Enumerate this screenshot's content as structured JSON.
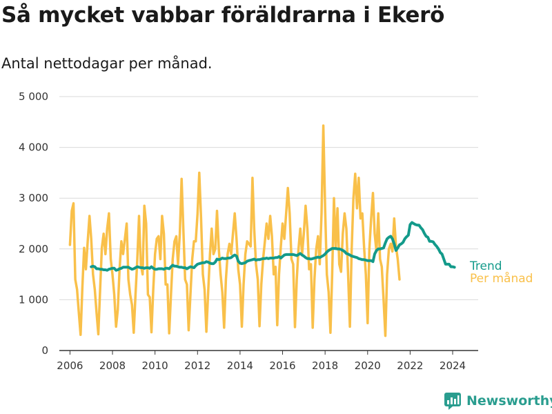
{
  "header": {
    "title": "Så mycket vabbar föräldrarna i Ekerö",
    "subtitle": "Antal nettodagar per månad."
  },
  "brand": {
    "name": "Newsworthy",
    "icon": "bar-chart-logo-icon",
    "color": "#2a9d8f"
  },
  "chart_data": {
    "type": "line",
    "xlim": [
      2005.5,
      2025.2
    ],
    "ylim": [
      0,
      5000
    ],
    "y_ticks": [
      {
        "value": 0,
        "label": "0"
      },
      {
        "value": 1000,
        "label": "1 000"
      },
      {
        "value": 2000,
        "label": "2 000"
      },
      {
        "value": 3000,
        "label": "3 000"
      },
      {
        "value": 4000,
        "label": "4 000"
      },
      {
        "value": 5000,
        "label": "5 000"
      }
    ],
    "x_ticks": [
      {
        "value": 2006,
        "label": "2006"
      },
      {
        "value": 2008,
        "label": "2008"
      },
      {
        "value": 2010,
        "label": "2010"
      },
      {
        "value": 2012,
        "label": "2012"
      },
      {
        "value": 2014,
        "label": "2014"
      },
      {
        "value": 2016,
        "label": "2016"
      },
      {
        "value": 2018,
        "label": "2018"
      },
      {
        "value": 2020,
        "label": "2020"
      },
      {
        "value": 2022,
        "label": "2022"
      },
      {
        "value": 2024,
        "label": "2024"
      }
    ],
    "grid": true,
    "series": [
      {
        "name": "Per månad",
        "color": "#f9c04a",
        "start": 2006.0,
        "step": 0.0833333,
        "values": [
          2080,
          2750,
          2900,
          1400,
          1200,
          750,
          310,
          1250,
          2020,
          1600,
          2150,
          2650,
          2200,
          1500,
          1200,
          750,
          320,
          1200,
          2020,
          2300,
          1900,
          2400,
          2700,
          1800,
          1500,
          1100,
          470,
          800,
          1600,
          2150,
          1900,
          2200,
          2500,
          1400,
          1100,
          900,
          350,
          1100,
          1800,
          2650,
          1700,
          1500,
          2850,
          2500,
          1100,
          1050,
          360,
          1200,
          1900,
          2200,
          2250,
          1800,
          2650,
          2300,
          1300,
          1300,
          340,
          1100,
          1800,
          2150,
          2250,
          1700,
          2300,
          3380,
          2400,
          1400,
          1300,
          400,
          1100,
          1800,
          2150,
          2150,
          2700,
          3500,
          2600,
          1500,
          1200,
          370,
          1150,
          1900,
          2400,
          1900,
          2000,
          2750,
          2000,
          1500,
          1150,
          450,
          1400,
          1900,
          2100,
          1900,
          2300,
          2700,
          2200,
          1600,
          1300,
          470,
          1300,
          1900,
          2150,
          2100,
          2050,
          3400,
          2400,
          1700,
          1400,
          480,
          1300,
          1800,
          2150,
          2500,
          2200,
          2650,
          2250,
          1500,
          1650,
          500,
          1500,
          2050,
          2500,
          2200,
          2700,
          3200,
          2700,
          1800,
          1700,
          460,
          1400,
          2000,
          2400,
          1900,
          2300,
          2850,
          2400,
          1600,
          1700,
          450,
          1400,
          2000,
          2250,
          1700,
          2700,
          4430,
          2800,
          1500,
          1150,
          350,
          1500,
          3000,
          2000,
          2800,
          1700,
          1550,
          2300,
          2700,
          2400,
          1500,
          470,
          2000,
          3000,
          3480,
          2800,
          3400,
          2600,
          2700,
          2050,
          1500,
          540,
          2000,
          2600,
          3100,
          2300,
          1950,
          2700,
          1800,
          1650,
          1000,
          290,
          1500,
          2000,
          2100,
          1950,
          2600,
          2050,
          1800,
          1400
        ]
      },
      {
        "name": "Trend",
        "color": "#139a8a",
        "start": 2007.0,
        "step": 0.0833333,
        "values": [
          1650,
          1660,
          1650,
          1610,
          1610,
          1600,
          1600,
          1590,
          1590,
          1580,
          1600,
          1610,
          1620,
          1620,
          1580,
          1590,
          1610,
          1620,
          1640,
          1640,
          1640,
          1640,
          1620,
          1600,
          1610,
          1630,
          1650,
          1640,
          1630,
          1630,
          1620,
          1630,
          1630,
          1620,
          1650,
          1620,
          1600,
          1600,
          1610,
          1610,
          1610,
          1600,
          1620,
          1620,
          1610,
          1650,
          1680,
          1660,
          1660,
          1650,
          1640,
          1640,
          1630,
          1630,
          1610,
          1630,
          1650,
          1640,
          1630,
          1670,
          1700,
          1710,
          1720,
          1730,
          1730,
          1750,
          1740,
          1720,
          1710,
          1710,
          1740,
          1800,
          1790,
          1800,
          1820,
          1810,
          1810,
          1820,
          1820,
          1830,
          1860,
          1880,
          1860,
          1760,
          1720,
          1710,
          1720,
          1730,
          1760,
          1770,
          1780,
          1790,
          1800,
          1780,
          1790,
          1790,
          1800,
          1810,
          1810,
          1820,
          1810,
          1820,
          1820,
          1820,
          1830,
          1830,
          1850,
          1820,
          1850,
          1880,
          1890,
          1890,
          1890,
          1890,
          1890,
          1880,
          1870,
          1890,
          1910,
          1880,
          1860,
          1830,
          1810,
          1810,
          1800,
          1810,
          1820,
          1830,
          1840,
          1830,
          1850,
          1870,
          1900,
          1940,
          1970,
          1990,
          2010,
          2010,
          2010,
          2000,
          2000,
          1990,
          1970,
          1950,
          1910,
          1900,
          1880,
          1860,
          1850,
          1840,
          1830,
          1810,
          1800,
          1790,
          1790,
          1780,
          1770,
          1770,
          1770,
          1750,
          1900,
          1970,
          2000,
          2000,
          2010,
          2020,
          2120,
          2200,
          2230,
          2250,
          2200,
          2100,
          1970,
          2020,
          2080,
          2100,
          2130,
          2200,
          2240,
          2270,
          2480,
          2520,
          2500,
          2480,
          2470,
          2470,
          2420,
          2380,
          2310,
          2250,
          2230,
          2150,
          2150,
          2140,
          2090,
          2050,
          2000,
          1930,
          1900,
          1800,
          1700,
          1700,
          1700,
          1650,
          1650,
          1640
        ]
      }
    ]
  }
}
